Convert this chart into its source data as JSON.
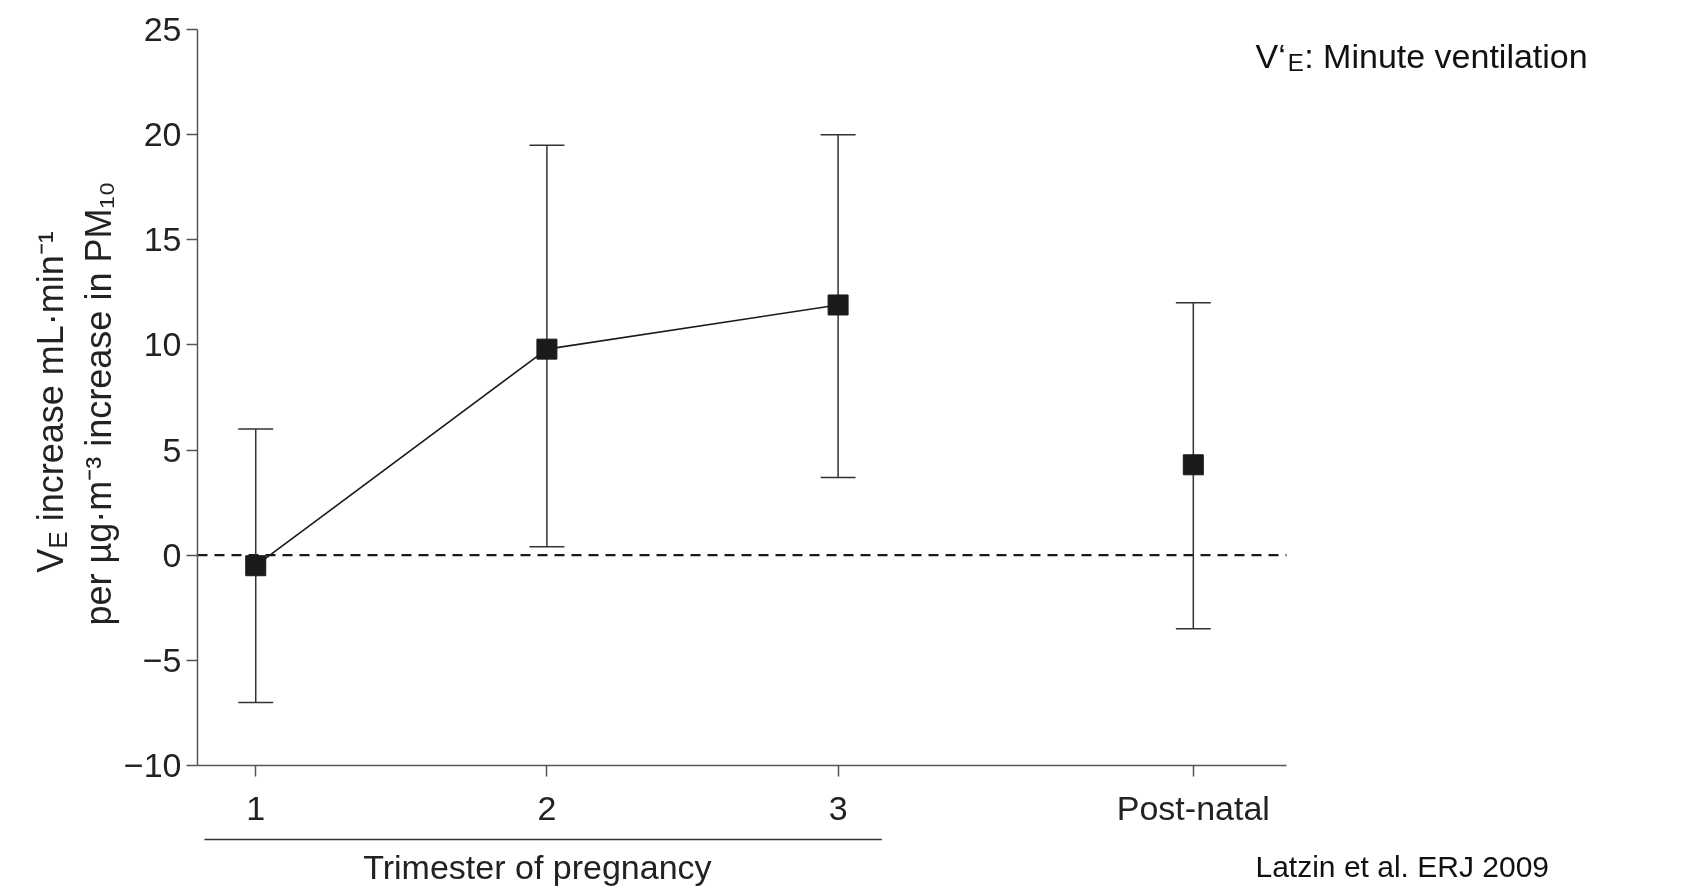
{
  "chart_data": {
    "type": "line",
    "categories": [
      "1",
      "2",
      "3",
      "Post-natal"
    ],
    "xlabel": "Trimester of pregnancy",
    "ylabel": "V$_{E}$ increase mL·min⁻¹\nper µg·m⁻³ increase in PM₁₀",
    "series": [
      {
        "color": "#1a1a1a",
        "values": [
          -0.5,
          9.8,
          11.9,
          null
        ],
        "errors": [
          [
            -7,
            6
          ],
          [
            0.4,
            19.5
          ],
          [
            3.7,
            20
          ],
          null
        ]
      },
      {
        "type": "scatter",
        "color": "#1a1a1a",
        "values": [
          null,
          null,
          null,
          4.3
        ],
        "errors": [
          null,
          null,
          null,
          [
            -3.5,
            12
          ]
        ]
      }
    ],
    "ylim": [
      -10,
      25
    ],
    "yticks": [
      -10,
      -5,
      0,
      5,
      10,
      15,
      20,
      25
    ],
    "marker": "square",
    "line_style": "solid",
    "grid": false,
    "ref_lines": [
      {
        "axis": "y",
        "value": 0,
        "color": "#1a1a1a",
        "line_style": "dashed"
      }
    ],
    "annotations": [
      "V‘$_{E}$: Minute ventilation",
      "Latzin et al. ERJ 2009"
    ]
  }
}
